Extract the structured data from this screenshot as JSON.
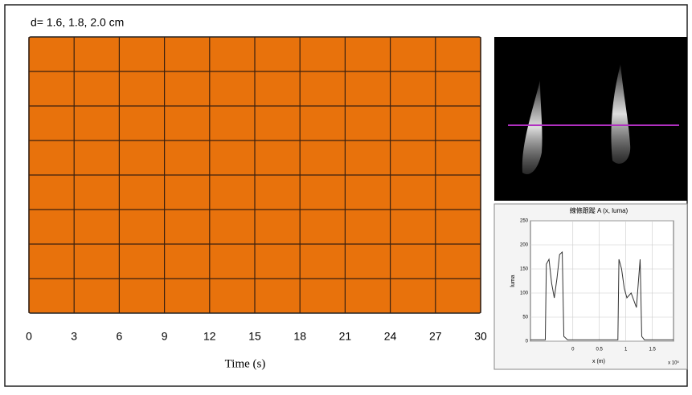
{
  "chart_data": [
    {
      "type": "grid",
      "title": "d= 1.6, 1.8, 2.0 cm",
      "x_label": "Time (s)",
      "xlim": [
        0,
        30
      ],
      "xticks": [
        0,
        3,
        6,
        9,
        12,
        15,
        18,
        21,
        24,
        27,
        30
      ],
      "rows": 8,
      "color": "#e8720c",
      "grid": true
    },
    {
      "type": "line",
      "title": "線條跟蹤 A (x, luma)",
      "x_label": "x (m)",
      "y_label": "luma",
      "x_multiplier": "x 10⁵",
      "xlim": [
        -0.8,
        1.9
      ],
      "xticks": [
        0,
        0.5,
        1.0,
        1.5
      ],
      "ylim": [
        0,
        250
      ],
      "yticks": [
        0,
        50,
        100,
        150,
        200,
        250
      ],
      "grid": true,
      "x": [
        -0.8,
        -0.52,
        -0.5,
        -0.45,
        -0.4,
        -0.35,
        -0.3,
        -0.25,
        -0.2,
        -0.17,
        -0.1,
        0.85,
        0.87,
        0.92,
        0.97,
        1.02,
        1.1,
        1.2,
        1.27,
        1.3,
        1.35,
        1.9
      ],
      "series": [
        {
          "name": "luma",
          "color": "#333333",
          "values": [
            3,
            3,
            160,
            170,
            120,
            90,
            130,
            180,
            185,
            10,
            3,
            3,
            170,
            150,
            110,
            90,
            100,
            70,
            170,
            10,
            3,
            3
          ]
        }
      ]
    }
  ]
}
